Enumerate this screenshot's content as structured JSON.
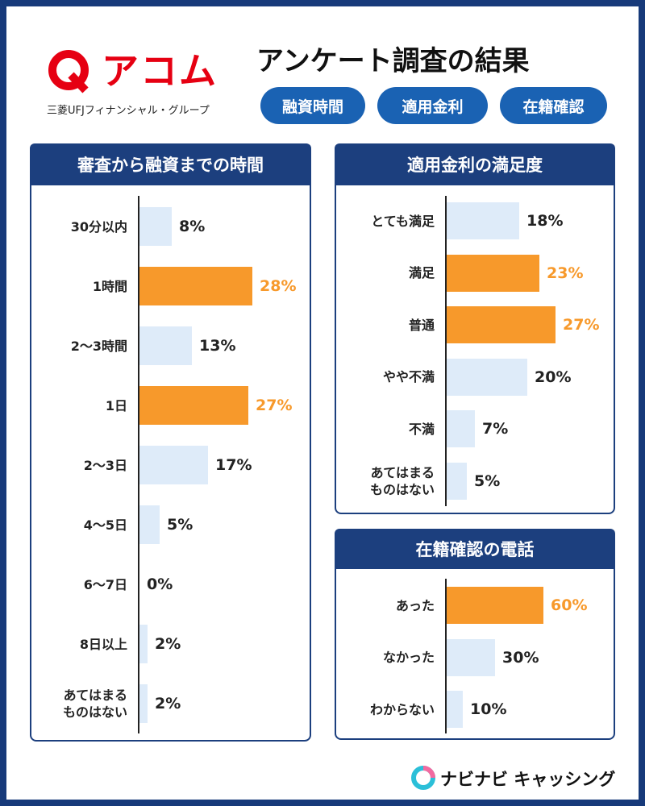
{
  "header": {
    "brand": "アコム",
    "brand_sub": "三菱UFJフィナンシャル・グループ",
    "title": "アンケート調査の結果",
    "tags": [
      "融資時間",
      "適用金利",
      "在籍確認"
    ]
  },
  "chart_data": [
    {
      "type": "hbar",
      "title": "審査から融資までの時間",
      "categories": [
        "30分以内",
        "1時間",
        "2〜3時間",
        "1日",
        "2〜3日",
        "4〜5日",
        "6〜7日",
        "8日以上",
        "あてはまるものはない"
      ],
      "values": [
        8,
        28,
        13,
        27,
        17,
        5,
        0,
        2,
        2
      ],
      "value_labels": [
        "8%",
        "28%",
        "13%",
        "27%",
        "17%",
        "5%",
        "0%",
        "2%",
        "2%"
      ],
      "colors": [
        "#deebf9",
        "#f7992b",
        "#deebf9",
        "#f7992b",
        "#deebf9",
        "#deebf9",
        "#deebf9",
        "#deebf9",
        "#deebf9"
      ],
      "value_label_colors": [
        "#222",
        "#f7992b",
        "#222",
        "#f7992b",
        "#222",
        "#222",
        "#222",
        "#222",
        "#222"
      ]
    },
    {
      "type": "hbar",
      "title": "適用金利の満足度",
      "categories": [
        "とても満足",
        "満足",
        "普通",
        "やや不満",
        "不満",
        "あてはまるものはない"
      ],
      "values": [
        18,
        23,
        27,
        20,
        7,
        5
      ],
      "value_labels": [
        "18%",
        "23%",
        "27%",
        "20%",
        "7%",
        "5%"
      ],
      "colors": [
        "#deebf9",
        "#f7992b",
        "#f7992b",
        "#deebf9",
        "#deebf9",
        "#deebf9"
      ],
      "value_label_colors": [
        "#222",
        "#f7992b",
        "#f7992b",
        "#222",
        "#222",
        "#222"
      ]
    },
    {
      "type": "hbar",
      "title": "在籍確認の電話",
      "categories": [
        "あった",
        "なかった",
        "わからない"
      ],
      "values": [
        60,
        30,
        10
      ],
      "value_labels": [
        "60%",
        "30%",
        "10%"
      ],
      "colors": [
        "#f7992b",
        "#deebf9",
        "#deebf9"
      ],
      "value_label_colors": [
        "#f7992b",
        "#222",
        "#222"
      ]
    }
  ],
  "footer": {
    "brand": "ナビナビ キャッシング"
  }
}
